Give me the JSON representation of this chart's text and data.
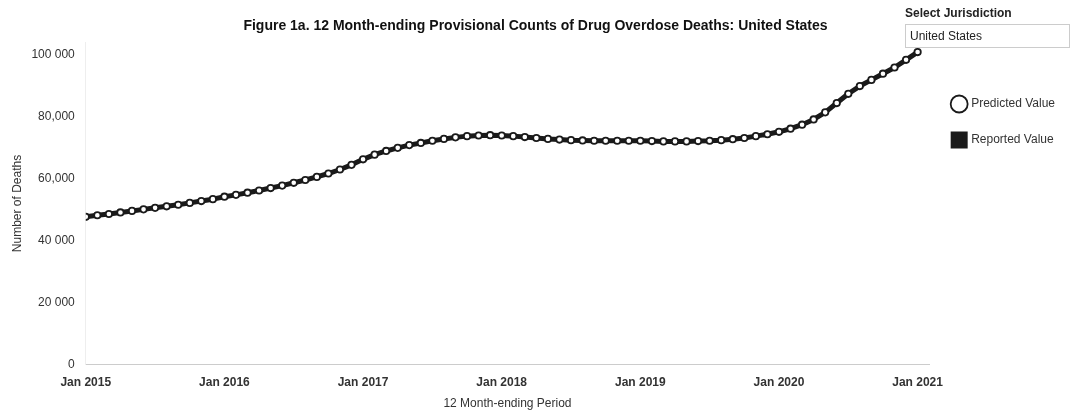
{
  "chart_data": {
    "type": "line",
    "title": "Figure 1a. 12 Month-ending Provisional Counts of Drug Overdose Deaths: United States",
    "xlabel": "12 Month-ending Period",
    "ylabel": "Number of Deaths",
    "annotations": [
      "Select Jurisdiction",
      "United States"
    ],
    "x": [
      "2015-01",
      "2015-02",
      "2015-03",
      "2015-04",
      "2015-05",
      "2015-06",
      "2015-07",
      "2015-08",
      "2015-09",
      "2015-10",
      "2015-11",
      "2015-12",
      "2016-01",
      "2016-02",
      "2016-03",
      "2016-04",
      "2016-05",
      "2016-06",
      "2016-07",
      "2016-08",
      "2016-09",
      "2016-10",
      "2016-11",
      "2016-12",
      "2017-01",
      "2017-02",
      "2017-03",
      "2017-04",
      "2017-05",
      "2017-06",
      "2017-07",
      "2017-08",
      "2017-09",
      "2017-10",
      "2017-11",
      "2017-12",
      "2018-01",
      "2018-02",
      "2018-03",
      "2018-04",
      "2018-05",
      "2018-06",
      "2018-07",
      "2018-08",
      "2018-09",
      "2018-10",
      "2018-11",
      "2018-12",
      "2019-01",
      "2019-02",
      "2019-03",
      "2019-04",
      "2019-05",
      "2019-06",
      "2019-07",
      "2019-08",
      "2019-09",
      "2019-10",
      "2019-11",
      "2019-12",
      "2020-01",
      "2020-02",
      "2020-03",
      "2020-04",
      "2020-05",
      "2020-06",
      "2020-07",
      "2020-08",
      "2020-09",
      "2020-10",
      "2020-11",
      "2020-12",
      "2021-01"
    ],
    "series": [
      {
        "name": "Predicted Value",
        "type": "scatter",
        "marker": "circle",
        "color": "#1a1a1a",
        "values": [
          47700,
          48200,
          48600,
          49100,
          49600,
          50100,
          50600,
          51100,
          51600,
          52200,
          52800,
          53400,
          54200,
          54800,
          55500,
          56200,
          57000,
          57800,
          58700,
          59600,
          60600,
          61700,
          63000,
          64500,
          66300,
          67800,
          69000,
          70000,
          70900,
          71600,
          72300,
          72900,
          73400,
          73800,
          74000,
          74100,
          74000,
          73800,
          73500,
          73200,
          72900,
          72700,
          72500,
          72400,
          72300,
          72300,
          72300,
          72300,
          72300,
          72200,
          72100,
          72100,
          72100,
          72200,
          72300,
          72500,
          72800,
          73200,
          73800,
          74400,
          75200,
          76200,
          77500,
          79200,
          81500,
          84500,
          87500,
          90000,
          92000,
          94000,
          96000,
          98500,
          101000
        ]
      },
      {
        "name": "Reported Value",
        "type": "line",
        "marker": "none",
        "line_style": "solid",
        "color": "#1a1a1a",
        "values": [
          47700,
          48200,
          48600,
          49100,
          49600,
          50100,
          50600,
          51100,
          51600,
          52200,
          52800,
          53400,
          54200,
          54800,
          55500,
          56200,
          57000,
          57800,
          58700,
          59600,
          60600,
          61700,
          63000,
          64500,
          66300,
          67800,
          69000,
          70000,
          70900,
          71600,
          72300,
          72900,
          73400,
          73800,
          74000,
          74100,
          74000,
          73800,
          73500,
          73200,
          72900,
          72700,
          72500,
          72400,
          72300,
          72300,
          72300,
          72300,
          72300,
          72200,
          72100,
          72100,
          72100,
          72200,
          72300,
          72500,
          72800,
          73200,
          73800,
          74400,
          75200,
          76200,
          77500,
          79200,
          81500,
          84500,
          87500,
          90000,
          92000,
          94000,
          96000,
          98500,
          101000
        ]
      }
    ],
    "xlim": [
      "2015-01",
      "2021-02"
    ],
    "xticks": [
      {
        "value": "2015-01",
        "label": "Jan 2015"
      },
      {
        "value": "2016-01",
        "label": "Jan 2016"
      },
      {
        "value": "2017-01",
        "label": "Jan 2017"
      },
      {
        "value": "2018-01",
        "label": "Jan 2018"
      },
      {
        "value": "2019-01",
        "label": "Jan 2019"
      },
      {
        "value": "2020-01",
        "label": "Jan 2020"
      },
      {
        "value": "2021-01",
        "label": "Jan 2021"
      }
    ],
    "ylim": [
      0,
      104000
    ],
    "yticks": [
      0,
      {
        "value": 20000,
        "label": "20 000"
      },
      {
        "value": 40000,
        "label": "40 000"
      },
      {
        "value": 60000,
        "label": "60,000"
      },
      {
        "value": 80000,
        "label": "80,000"
      },
      {
        "value": 100000,
        "label": "100 000"
      }
    ],
    "grid": false,
    "legend": "right"
  }
}
